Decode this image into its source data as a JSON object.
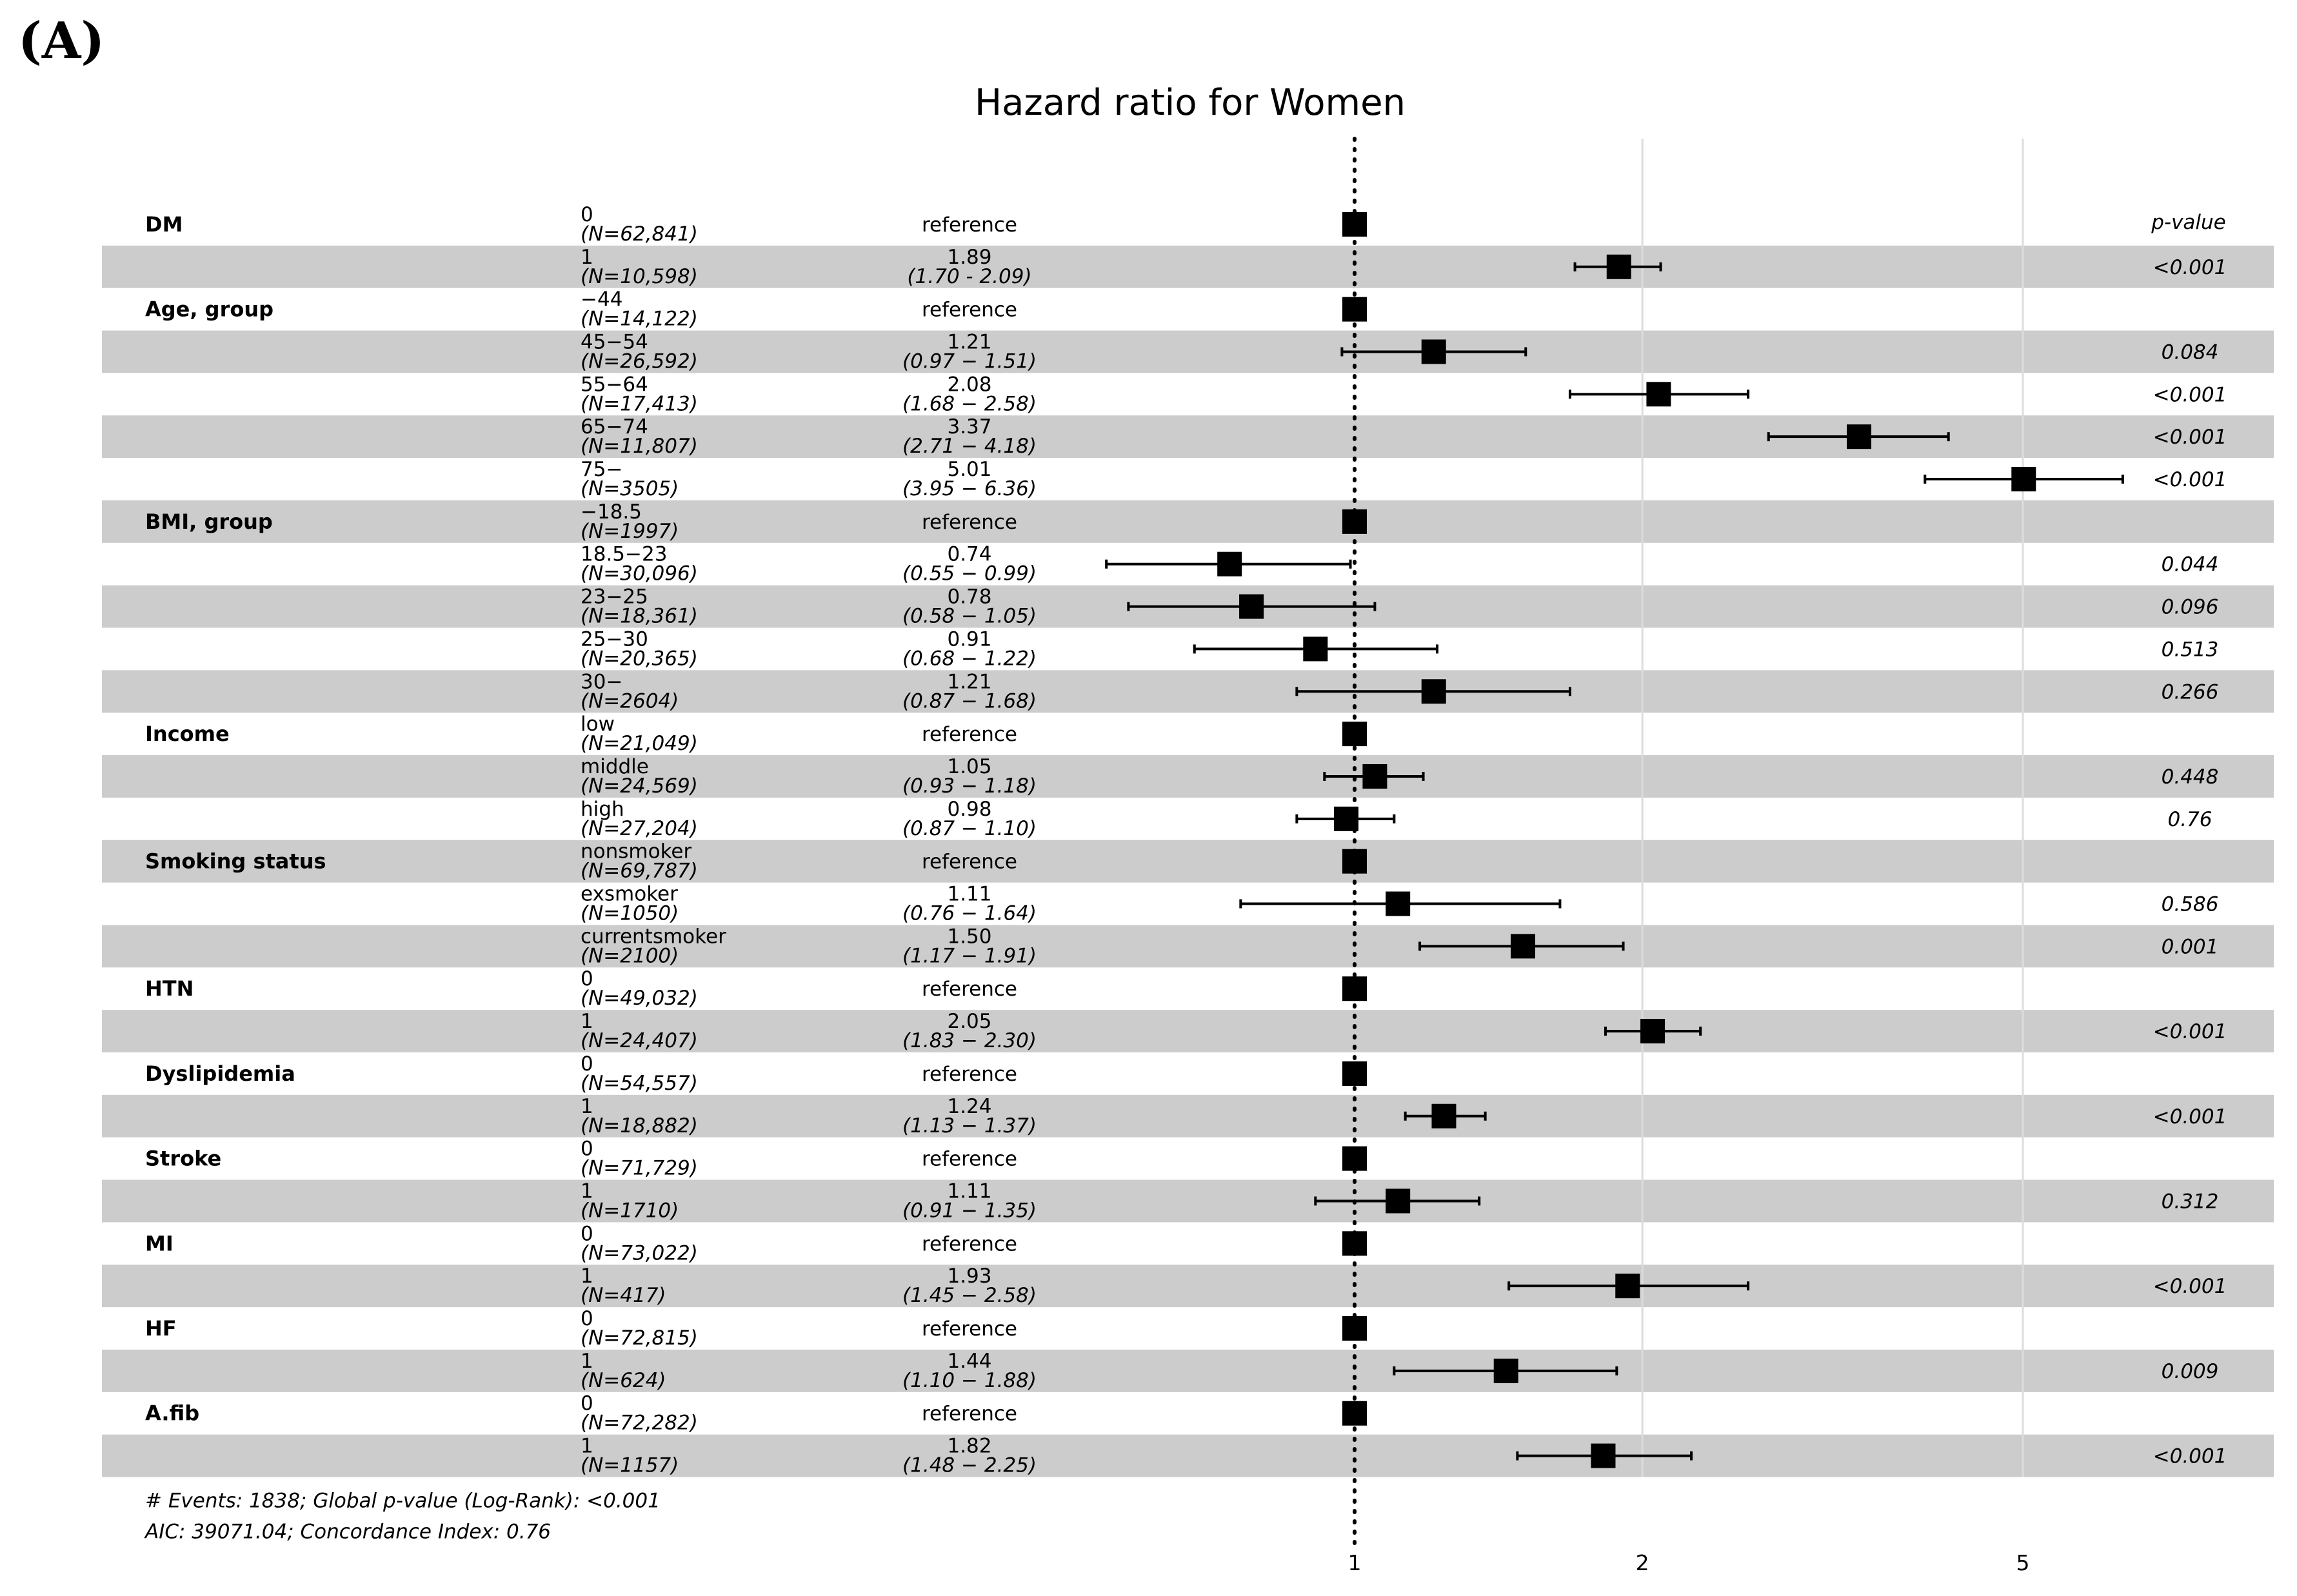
{
  "panel_label": "(A)",
  "chart_data": {
    "type": "forest",
    "title": "Hazard ratio for Women",
    "x_scale": "log",
    "xlim": [
      0.4,
      8.5
    ],
    "x_ticks": [
      1,
      2,
      5
    ],
    "x_tick_labels": [
      "1",
      "2",
      "5"
    ],
    "reference_line": 1,
    "pvalue_header": "p-value",
    "rows": [
      {
        "variable": "DM",
        "level": "0",
        "n": "(N=62,841)",
        "hr": 1,
        "est_label": "reference",
        "ci_label": "",
        "p": ""
      },
      {
        "variable": "",
        "level": "1",
        "n": "(N=10,598)",
        "hr": 1.89,
        "lo": 1.7,
        "hi": 2.09,
        "est_label": "1.89",
        "ci_label": "(1.70 - 2.09)",
        "p": "<0.001"
      },
      {
        "variable": "Age, group",
        "level": "−44",
        "n": "(N=14,122)",
        "hr": 1,
        "est_label": "reference",
        "ci_label": "",
        "p": ""
      },
      {
        "variable": "",
        "level": "45−54",
        "n": "(N=26,592)",
        "hr": 1.21,
        "lo": 0.97,
        "hi": 1.51,
        "est_label": "1.21",
        "ci_label": "(0.97 − 1.51)",
        "p": "0.084"
      },
      {
        "variable": "",
        "level": "55−64",
        "n": "(N=17,413)",
        "hr": 2.08,
        "lo": 1.68,
        "hi": 2.58,
        "est_label": "2.08",
        "ci_label": "(1.68 − 2.58)",
        "p": "<0.001"
      },
      {
        "variable": "",
        "level": "65−74",
        "n": "(N=11,807)",
        "hr": 3.37,
        "lo": 2.71,
        "hi": 4.18,
        "est_label": "3.37",
        "ci_label": "(2.71 − 4.18)",
        "p": "<0.001"
      },
      {
        "variable": "",
        "level": "75−",
        "n": "(N=3505)",
        "hr": 5.01,
        "lo": 3.95,
        "hi": 6.36,
        "est_label": "5.01",
        "ci_label": "(3.95 − 6.36)",
        "p": "<0.001"
      },
      {
        "variable": "BMI, group",
        "level": "−18.5",
        "n": "(N=1997)",
        "hr": 1,
        "est_label": "reference",
        "ci_label": "",
        "p": ""
      },
      {
        "variable": "",
        "level": "18.5−23",
        "n": "(N=30,096)",
        "hr": 0.74,
        "lo": 0.55,
        "hi": 0.99,
        "est_label": "0.74",
        "ci_label": "(0.55 − 0.99)",
        "p": "0.044"
      },
      {
        "variable": "",
        "level": "23−25",
        "n": "(N=18,361)",
        "hr": 0.78,
        "lo": 0.58,
        "hi": 1.05,
        "est_label": "0.78",
        "ci_label": "(0.58 − 1.05)",
        "p": "0.096"
      },
      {
        "variable": "",
        "level": "25−30",
        "n": "(N=20,365)",
        "hr": 0.91,
        "lo": 0.68,
        "hi": 1.22,
        "est_label": "0.91",
        "ci_label": "(0.68 − 1.22)",
        "p": "0.513"
      },
      {
        "variable": "",
        "level": "30−",
        "n": "(N=2604)",
        "hr": 1.21,
        "lo": 0.87,
        "hi": 1.68,
        "est_label": "1.21",
        "ci_label": "(0.87 − 1.68)",
        "p": "0.266"
      },
      {
        "variable": "Income",
        "level": "low",
        "n": "(N=21,049)",
        "hr": 1,
        "est_label": "reference",
        "ci_label": "",
        "p": ""
      },
      {
        "variable": "",
        "level": "middle",
        "n": "(N=24,569)",
        "hr": 1.05,
        "lo": 0.93,
        "hi": 1.18,
        "est_label": "1.05",
        "ci_label": "(0.93 − 1.18)",
        "p": "0.448"
      },
      {
        "variable": "",
        "level": "high",
        "n": "(N=27,204)",
        "hr": 0.98,
        "lo": 0.87,
        "hi": 1.1,
        "est_label": "0.98",
        "ci_label": "(0.87 − 1.10)",
        "p": "0.76"
      },
      {
        "variable": "Smoking status",
        "level": "nonsmoker",
        "n": "(N=69,787)",
        "hr": 1,
        "est_label": "reference",
        "ci_label": "",
        "p": ""
      },
      {
        "variable": "",
        "level": "exsmoker",
        "n": "(N=1050)",
        "hr": 1.11,
        "lo": 0.76,
        "hi": 1.64,
        "est_label": "1.11",
        "ci_label": "(0.76 − 1.64)",
        "p": "0.586"
      },
      {
        "variable": "",
        "level": "currentsmoker",
        "n": "(N=2100)",
        "hr": 1.5,
        "lo": 1.17,
        "hi": 1.91,
        "est_label": "1.50",
        "ci_label": "(1.17 − 1.91)",
        "p": "0.001"
      },
      {
        "variable": "HTN",
        "level": "0",
        "n": "(N=49,032)",
        "hr": 1,
        "est_label": "reference",
        "ci_label": "",
        "p": ""
      },
      {
        "variable": "",
        "level": "1",
        "n": "(N=24,407)",
        "hr": 2.05,
        "lo": 1.83,
        "hi": 2.3,
        "est_label": "2.05",
        "ci_label": "(1.83 − 2.30)",
        "p": "<0.001"
      },
      {
        "variable": "Dyslipidemia",
        "level": "0",
        "n": "(N=54,557)",
        "hr": 1,
        "est_label": "reference",
        "ci_label": "",
        "p": ""
      },
      {
        "variable": "",
        "level": "1",
        "n": "(N=18,882)",
        "hr": 1.24,
        "lo": 1.13,
        "hi": 1.37,
        "est_label": "1.24",
        "ci_label": "(1.13 − 1.37)",
        "p": "<0.001"
      },
      {
        "variable": "Stroke",
        "level": "0",
        "n": "(N=71,729)",
        "hr": 1,
        "est_label": "reference",
        "ci_label": "",
        "p": ""
      },
      {
        "variable": "",
        "level": "1",
        "n": "(N=1710)",
        "hr": 1.11,
        "lo": 0.91,
        "hi": 1.35,
        "est_label": "1.11",
        "ci_label": "(0.91 − 1.35)",
        "p": "0.312"
      },
      {
        "variable": "MI",
        "level": "0",
        "n": "(N=73,022)",
        "hr": 1,
        "est_label": "reference",
        "ci_label": "",
        "p": ""
      },
      {
        "variable": "",
        "level": "1",
        "n": "(N=417)",
        "hr": 1.93,
        "lo": 1.45,
        "hi": 2.58,
        "est_label": "1.93",
        "ci_label": "(1.45 − 2.58)",
        "p": "<0.001"
      },
      {
        "variable": "HF",
        "level": "0",
        "n": "(N=72,815)",
        "hr": 1,
        "est_label": "reference",
        "ci_label": "",
        "p": ""
      },
      {
        "variable": "",
        "level": "1",
        "n": "(N=624)",
        "hr": 1.44,
        "lo": 1.1,
        "hi": 1.88,
        "est_label": "1.44",
        "ci_label": "(1.10 − 1.88)",
        "p": "0.009"
      },
      {
        "variable": "A.fib",
        "level": "0",
        "n": "(N=72,282)",
        "hr": 1,
        "est_label": "reference",
        "ci_label": "",
        "p": ""
      },
      {
        "variable": "",
        "level": "1",
        "n": "(N=1157)",
        "hr": 1.82,
        "lo": 1.48,
        "hi": 2.25,
        "est_label": "1.82",
        "ci_label": "(1.48 − 2.25)",
        "p": "<0.001"
      }
    ],
    "footer": [
      "# Events: 1838; Global p-value (Log-Rank): <0.001",
      "AIC: 39071.04; Concordance Index: 0.76"
    ]
  }
}
